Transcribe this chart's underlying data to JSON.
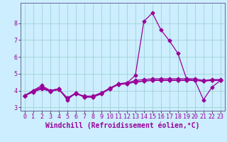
{
  "xlabel": "Windchill (Refroidissement éolien,°C)",
  "background_color": "#cceeff",
  "line_color": "#990099",
  "marker": "D",
  "markersize": 2.5,
  "linewidth": 0.9,
  "x": [
    0,
    1,
    2,
    3,
    4,
    5,
    6,
    7,
    8,
    9,
    10,
    11,
    12,
    13,
    14,
    15,
    16,
    17,
    18,
    19,
    20,
    21,
    22,
    23
  ],
  "lines": [
    [
      3.7,
      4.0,
      4.3,
      4.0,
      4.1,
      3.45,
      3.85,
      3.6,
      3.6,
      3.8,
      4.1,
      4.4,
      4.45,
      4.9,
      8.1,
      8.6,
      7.6,
      6.95,
      6.2,
      4.7,
      4.6,
      3.45,
      4.2,
      4.6
    ],
    [
      3.7,
      4.0,
      4.2,
      4.0,
      4.1,
      3.55,
      3.85,
      3.65,
      3.65,
      3.85,
      4.15,
      4.4,
      4.45,
      4.6,
      4.65,
      4.7,
      4.7,
      4.7,
      4.7,
      4.7,
      4.7,
      4.6,
      4.65,
      4.65
    ],
    [
      3.7,
      3.9,
      4.1,
      3.95,
      4.05,
      3.55,
      3.8,
      3.65,
      3.65,
      3.85,
      4.1,
      4.35,
      4.4,
      4.5,
      4.55,
      4.6,
      4.6,
      4.6,
      4.6,
      4.6,
      4.6,
      4.55,
      4.6,
      4.6
    ],
    [
      3.7,
      3.95,
      4.15,
      3.97,
      4.07,
      3.57,
      3.82,
      3.67,
      3.67,
      3.87,
      4.12,
      4.37,
      4.42,
      4.52,
      4.57,
      4.62,
      4.62,
      4.62,
      4.62,
      4.62,
      4.62,
      4.57,
      4.62,
      4.62
    ]
  ],
  "ylim": [
    2.8,
    9.2
  ],
  "xlim": [
    -0.5,
    23.5
  ],
  "yticks": [
    3,
    4,
    5,
    6,
    7,
    8
  ],
  "xticks": [
    0,
    1,
    2,
    3,
    4,
    5,
    6,
    7,
    8,
    9,
    10,
    11,
    12,
    13,
    14,
    15,
    16,
    17,
    18,
    19,
    20,
    21,
    22,
    23
  ],
  "grid_color": "#99cccc",
  "tick_fontsize": 6,
  "xlabel_fontsize": 7
}
